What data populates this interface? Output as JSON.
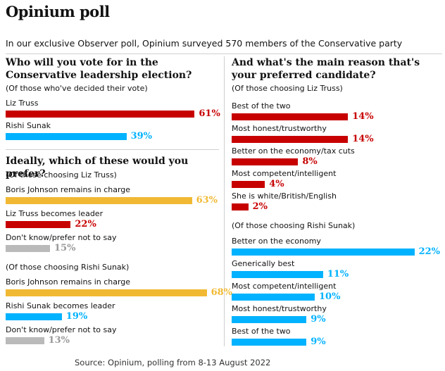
{
  "title": "Opinium poll",
  "subtitle": "In our exclusive Observer poll, Opinium surveyed 570 members of the Conservative party",
  "source": "Source: Opinium, polling from 8-13 August 2022",
  "colors": {
    "red": "#c70000",
    "blue": "#00b2ff",
    "yellow": "#f1b933",
    "grey": "#bababa",
    "greyText": "#999999"
  },
  "chart_data": [
    {
      "type": "bar",
      "title": "Who will you vote for in the Conservative leadership election?",
      "note": "(Of those who've decided their vote)",
      "categories": [
        "Liz Truss",
        "Rishi Sunak"
      ],
      "values": [
        61,
        39
      ],
      "colors": [
        "red",
        "blue"
      ],
      "units": "%"
    },
    {
      "type": "bar",
      "title": "Ideally, which of these would you prefer?",
      "note": "(Of those choosing Liz Truss)",
      "categories": [
        "Boris Johnson remains in charge",
        "Liz Truss becomes leader",
        "Don't know/prefer not to say"
      ],
      "values": [
        63,
        22,
        15
      ],
      "colors": [
        "yellow",
        "red",
        "grey"
      ],
      "units": "%"
    },
    {
      "type": "bar",
      "title": "",
      "note": "(Of those choosing Rishi Sunak)",
      "categories": [
        "Boris Johnson remains in charge",
        "Rishi Sunak becomes leader",
        "Don't know/prefer not to say"
      ],
      "values": [
        68,
        19,
        13
      ],
      "colors": [
        "yellow",
        "blue",
        "grey"
      ],
      "units": "%"
    },
    {
      "type": "bar",
      "title": "And what's the main reason that's your preferred candidate?",
      "note": "(Of those choosing Liz Truss)",
      "categories": [
        "Best of the two",
        "Most honest/trustworthy",
        "Better on the economy/tax cuts",
        "Most competent/intelligent",
        "She is white/British/English"
      ],
      "values": [
        14,
        14,
        8,
        4,
        2
      ],
      "colors": [
        "red",
        "red",
        "red",
        "red",
        "red"
      ],
      "units": "%"
    },
    {
      "type": "bar",
      "title": "",
      "note": "(Of those choosing Rishi Sunak)",
      "categories": [
        "Better on the economy",
        "Generically best",
        "Most competent/intelligent",
        "Most honest/trustworthy",
        "Best of the two"
      ],
      "values": [
        22,
        11,
        10,
        9,
        9
      ],
      "colors": [
        "blue",
        "blue",
        "blue",
        "blue",
        "blue"
      ],
      "units": "%"
    }
  ]
}
